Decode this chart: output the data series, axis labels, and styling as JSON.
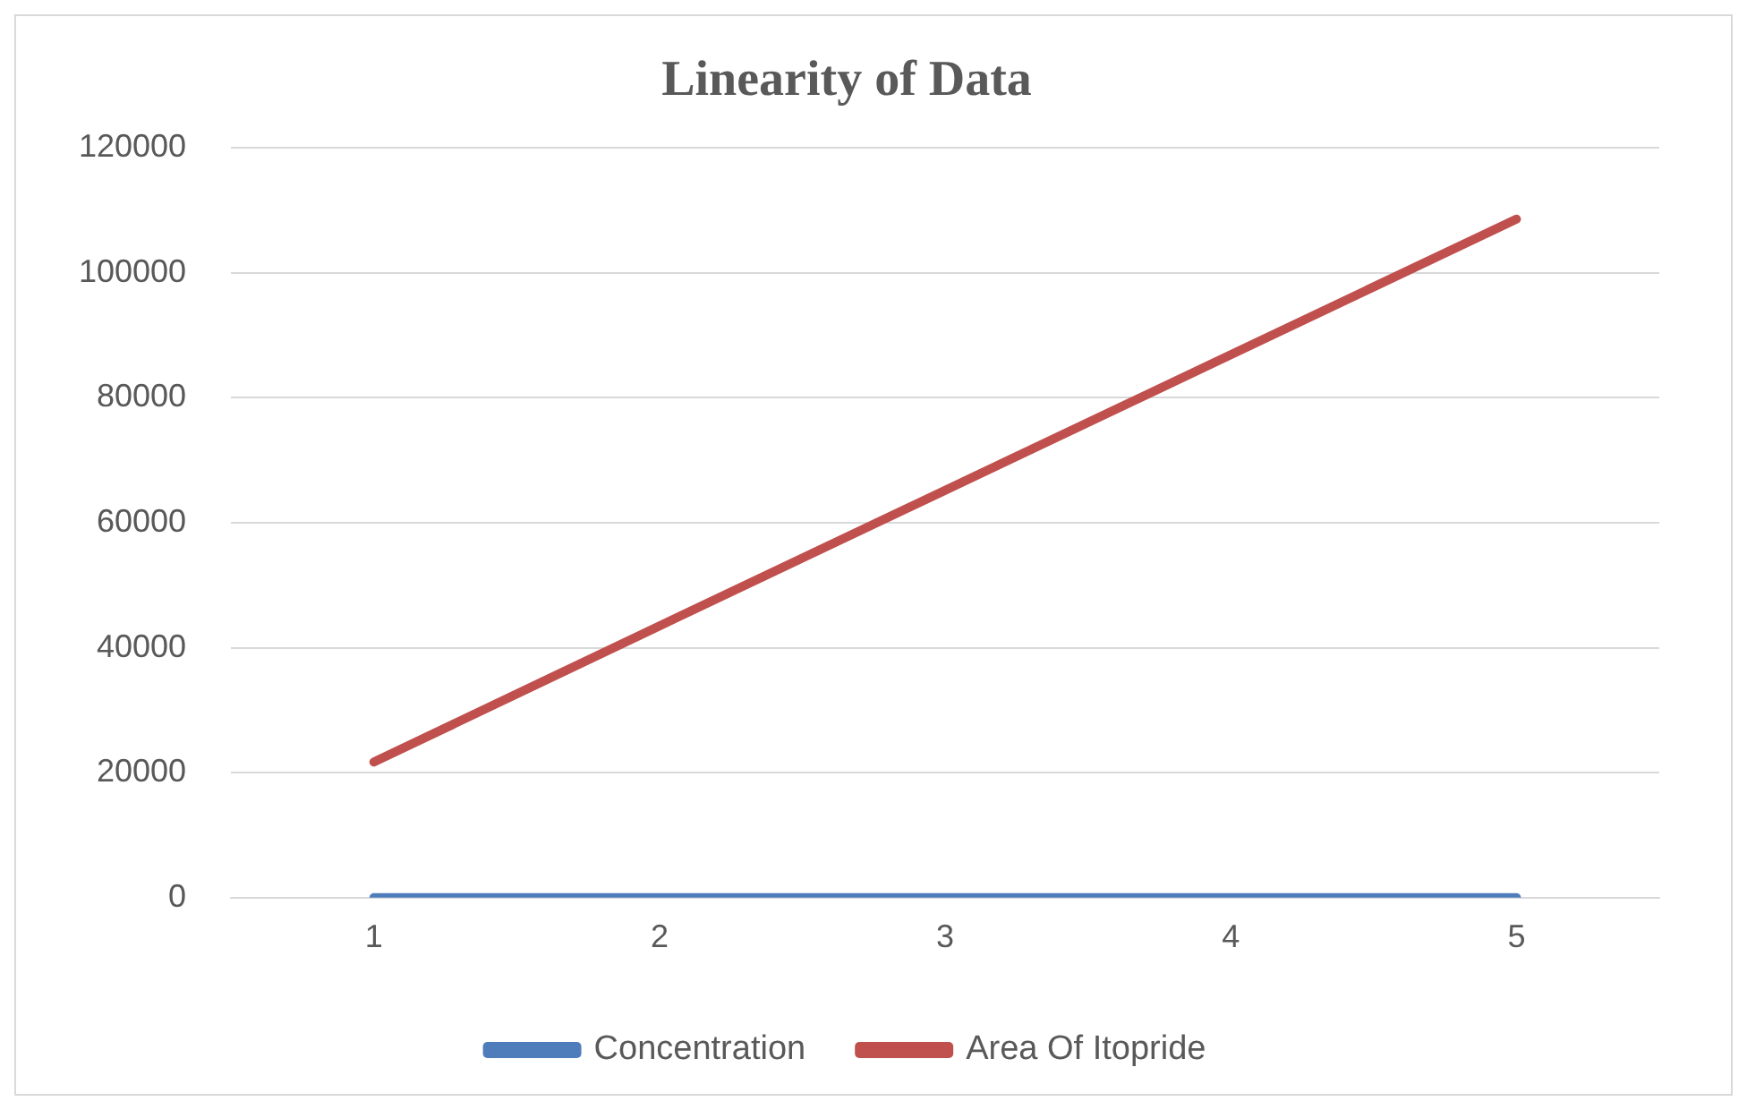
{
  "chart_data": {
    "type": "line",
    "title": "Linearity of Data",
    "categories": [
      "1",
      "2",
      "3",
      "4",
      "5"
    ],
    "series": [
      {
        "name": "Concentration",
        "color": "#4f7dbc",
        "values": [
          0,
          0,
          0,
          0,
          0
        ]
      },
      {
        "name": "Area Of Itopride",
        "color": "#c0504d",
        "values": [
          21700,
          43500,
          65200,
          86900,
          108600
        ]
      }
    ],
    "ylim": [
      0,
      120000
    ],
    "yticks": [
      0,
      20000,
      40000,
      60000,
      80000,
      100000,
      120000
    ],
    "grid": "y",
    "legend": "bottom",
    "marker": "none",
    "line_style": "solid"
  }
}
